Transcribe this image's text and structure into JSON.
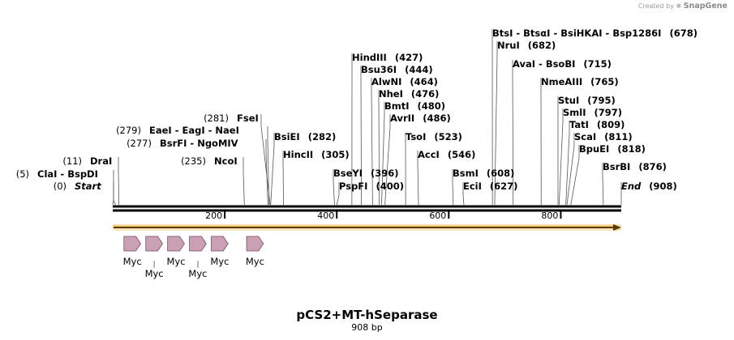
{
  "credit": {
    "prefix": "Created by",
    "brand": "SnapGene"
  },
  "title": "pCS2+MT-hSeparase",
  "length_label": "908 bp",
  "sequence_length": 908,
  "ruler_ticks": [
    {
      "label": "200",
      "pos": 200
    },
    {
      "label": "400",
      "pos": 400
    },
    {
      "label": "600",
      "pos": 600
    },
    {
      "label": "800",
      "pos": 800
    }
  ],
  "site_groups": [
    {
      "sites": [
        {
          "name": "Start",
          "style": "bi"
        }
      ],
      "pos_label": "(0)",
      "pos_side": "left",
      "pos": 0
    },
    {
      "sites": [
        {
          "name": "ClaI"
        },
        {
          "name": "BspDI"
        }
      ],
      "pos_label": "(5)",
      "pos_side": "left",
      "pos": 5
    },
    {
      "sites": [
        {
          "name": "DraI"
        }
      ],
      "pos_label": "(11)",
      "pos_side": "left",
      "pos": 11
    },
    {
      "sites": [
        {
          "name": "NcoI"
        }
      ],
      "pos_label": "(235)",
      "pos_side": "left",
      "pos": 235
    },
    {
      "sites": [
        {
          "name": "BsrFI"
        },
        {
          "name": "NgoMIV"
        }
      ],
      "pos_label": "(277)",
      "pos_side": "left",
      "pos": 277
    },
    {
      "sites": [
        {
          "name": "EaeI"
        },
        {
          "name": "EagI"
        },
        {
          "name": "NaeI"
        }
      ],
      "pos_label": "(279)",
      "pos_side": "left",
      "pos": 279
    },
    {
      "sites": [
        {
          "name": "FseI"
        }
      ],
      "pos_label": "(281)",
      "pos_side": "left",
      "pos": 281
    },
    {
      "sites": [
        {
          "name": "BsiEI"
        }
      ],
      "pos_label": "(282)",
      "pos_side": "right",
      "pos": 282
    },
    {
      "sites": [
        {
          "name": "HincII"
        }
      ],
      "pos_label": "(305)",
      "pos_side": "right",
      "pos": 305
    },
    {
      "sites": [
        {
          "name": "BseYI"
        }
      ],
      "pos_label": "(396)",
      "pos_side": "right",
      "pos": 396
    },
    {
      "sites": [
        {
          "name": "PspFI"
        }
      ],
      "pos_label": "(400)",
      "pos_side": "right",
      "pos": 400
    },
    {
      "sites": [
        {
          "name": "HindIII"
        }
      ],
      "pos_label": "(427)",
      "pos_side": "right",
      "pos": 427
    },
    {
      "sites": [
        {
          "name": "Bsu36I"
        }
      ],
      "pos_label": "(444)",
      "pos_side": "right",
      "pos": 444
    },
    {
      "sites": [
        {
          "name": "AlwNI"
        }
      ],
      "pos_label": "(464)",
      "pos_side": "right",
      "pos": 464
    },
    {
      "sites": [
        {
          "name": "NheI"
        }
      ],
      "pos_label": "(476)",
      "pos_side": "right",
      "pos": 476
    },
    {
      "sites": [
        {
          "name": "BmtI"
        }
      ],
      "pos_label": "(480)",
      "pos_side": "right",
      "pos": 480
    },
    {
      "sites": [
        {
          "name": "AvrII"
        }
      ],
      "pos_label": "(486)",
      "pos_side": "right",
      "pos": 486
    },
    {
      "sites": [
        {
          "name": "TsoI"
        }
      ],
      "pos_label": "(523)",
      "pos_side": "right",
      "pos": 523
    },
    {
      "sites": [
        {
          "name": "AccI"
        }
      ],
      "pos_label": "(546)",
      "pos_side": "right",
      "pos": 546
    },
    {
      "sites": [
        {
          "name": "BsmI"
        }
      ],
      "pos_label": "(608)",
      "pos_side": "right",
      "pos": 608
    },
    {
      "sites": [
        {
          "name": "EciI"
        }
      ],
      "pos_label": "(627)",
      "pos_side": "right",
      "pos": 627
    },
    {
      "sites": [
        {
          "name": "BtsI"
        },
        {
          "name": "BtsαI"
        },
        {
          "name": "BsiHKAI"
        },
        {
          "name": "Bsp1286I"
        }
      ],
      "pos_label": "(678)",
      "pos_side": "right",
      "pos": 678
    },
    {
      "sites": [
        {
          "name": "NruI"
        }
      ],
      "pos_label": "(682)",
      "pos_side": "right",
      "pos": 682
    },
    {
      "sites": [
        {
          "name": "AvaI"
        },
        {
          "name": "BsoBI"
        }
      ],
      "pos_label": "(715)",
      "pos_side": "right",
      "pos": 715
    },
    {
      "sites": [
        {
          "name": "NmeAIII"
        }
      ],
      "pos_label": "(765)",
      "pos_side": "right",
      "pos": 765
    },
    {
      "sites": [
        {
          "name": "StuI"
        }
      ],
      "pos_label": "(795)",
      "pos_side": "right",
      "pos": 795
    },
    {
      "sites": [
        {
          "name": "SmlI"
        }
      ],
      "pos_label": "(797)",
      "pos_side": "right",
      "pos": 797
    },
    {
      "sites": [
        {
          "name": "TatI"
        }
      ],
      "pos_label": "(809)",
      "pos_side": "right",
      "pos": 809
    },
    {
      "sites": [
        {
          "name": "ScaI"
        }
      ],
      "pos_label": "(811)",
      "pos_side": "right",
      "pos": 811
    },
    {
      "sites": [
        {
          "name": "BpuEI"
        }
      ],
      "pos_label": "(818)",
      "pos_side": "right",
      "pos": 818
    },
    {
      "sites": [
        {
          "name": "BsrBI"
        }
      ],
      "pos_label": "(876)",
      "pos_side": "right",
      "pos": 876
    },
    {
      "sites": [
        {
          "name": "End",
          "style": "bi"
        }
      ],
      "pos_label": "(908)",
      "pos_side": "right",
      "pos": 908
    }
  ],
  "features": {
    "orf_color": "#f5b041",
    "myc_color": "#c9a0b4",
    "myc_label": "Myc",
    "myc_tags": [
      {
        "label": "Myc",
        "start": 20,
        "end": 50
      },
      {
        "label": "Myc",
        "start": 59,
        "end": 89
      },
      {
        "label": "Myc",
        "start": 98,
        "end": 128
      },
      {
        "label": "Myc",
        "start": 137,
        "end": 167
      },
      {
        "label": "Myc",
        "start": 176,
        "end": 206
      },
      {
        "label": "Myc",
        "start": 239,
        "end": 269
      }
    ]
  }
}
